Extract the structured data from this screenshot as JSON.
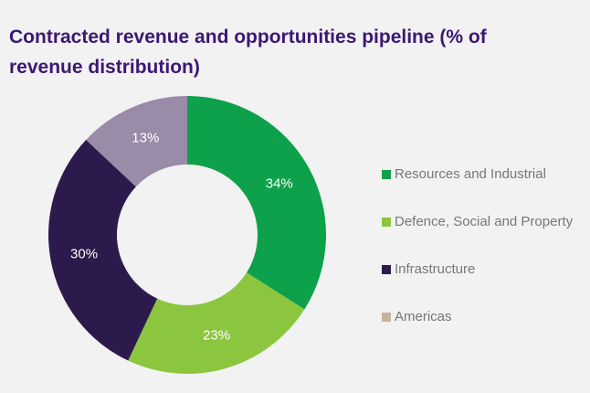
{
  "chart_data": {
    "type": "donut",
    "title": "Contracted revenue and opportunities pipeline (% of revenue distribution)",
    "categories": [
      "Resources and Industrial",
      "Defence, Social and Property",
      "Infrastructure",
      "Americas"
    ],
    "values": [
      34,
      23,
      30,
      13
    ],
    "value_labels": [
      "34%",
      "23%",
      "30%",
      "13%"
    ],
    "colors": [
      "#0ea14b",
      "#8cc63f",
      "#2d1a4c",
      "#9a8ba8"
    ],
    "legend_colors": [
      "#0ea14b",
      "#8cc63f",
      "#2d1a4c",
      "#c4b59b"
    ]
  }
}
